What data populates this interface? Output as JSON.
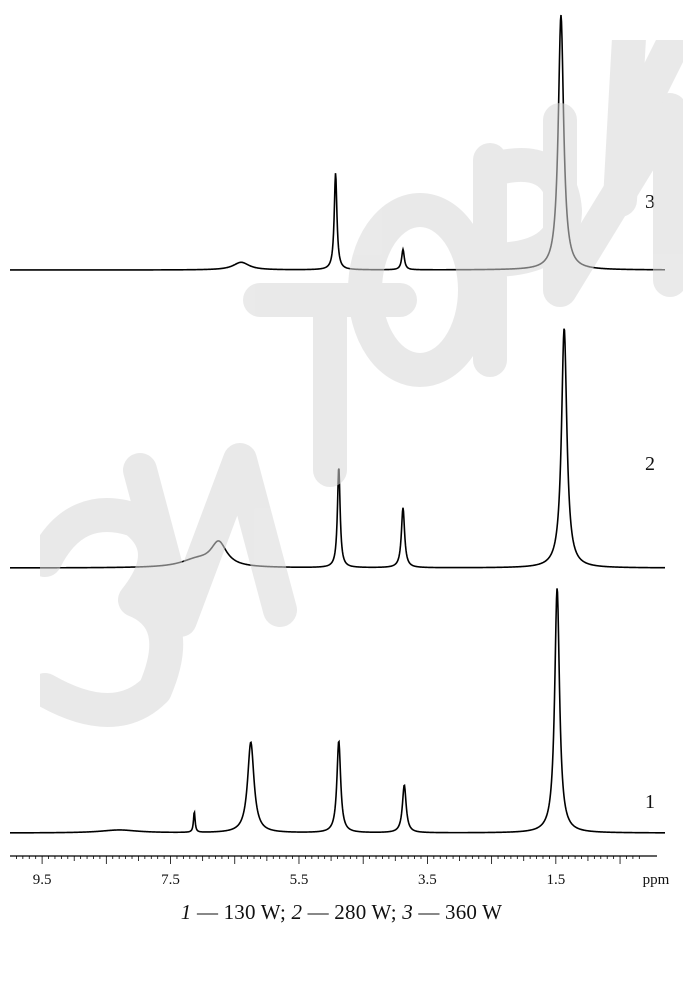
{
  "chart_data": {
    "type": "line",
    "title": "",
    "xlabel": "ppm",
    "ylabel": "",
    "x_reversed": true,
    "xlim": [
      10.0,
      -0.2
    ],
    "x_ticks_major": [
      "9.5",
      "7.5",
      "5.5",
      "3.5",
      "1.5"
    ],
    "x_tick_values": [
      9.5,
      7.5,
      5.5,
      3.5,
      1.5
    ],
    "grid": false,
    "legend": "none",
    "series": [
      {
        "name": "1",
        "baseline_offset": 0,
        "peaks": [
          {
            "ppm": 8.3,
            "height": 0.012,
            "width": 0.35
          },
          {
            "ppm": 7.13,
            "height": 0.085,
            "width": 0.015
          },
          {
            "ppm": 6.25,
            "height": 0.37,
            "width": 0.06
          },
          {
            "ppm": 4.88,
            "height": 0.375,
            "width": 0.035
          },
          {
            "ppm": 3.86,
            "height": 0.195,
            "width": 0.035
          },
          {
            "ppm": 1.48,
            "height": 1.0,
            "width": 0.045
          }
        ]
      },
      {
        "name": "2",
        "baseline_offset": 1,
        "peaks": [
          {
            "ppm": 7.1,
            "height": 0.03,
            "width": 0.3
          },
          {
            "ppm": 6.75,
            "height": 0.1,
            "width": 0.15
          },
          {
            "ppm": 4.88,
            "height": 0.42,
            "width": 0.025
          },
          {
            "ppm": 3.88,
            "height": 0.25,
            "width": 0.03
          },
          {
            "ppm": 1.37,
            "height": 1.0,
            "width": 0.05
          }
        ]
      },
      {
        "name": "3",
        "baseline_offset": 2,
        "peaks": [
          {
            "ppm": 6.4,
            "height": 0.03,
            "width": 0.15
          },
          {
            "ppm": 4.93,
            "height": 0.38,
            "width": 0.025
          },
          {
            "ppm": 3.88,
            "height": 0.08,
            "width": 0.025
          },
          {
            "ppm": 1.42,
            "height": 1.0,
            "width": 0.05
          }
        ]
      }
    ]
  },
  "caption": {
    "n1": "1",
    "t1": " — 130 W; ",
    "n2": "2",
    "t2": " — 280 W; ",
    "n3": "3",
    "t3": " — 360 W"
  }
}
